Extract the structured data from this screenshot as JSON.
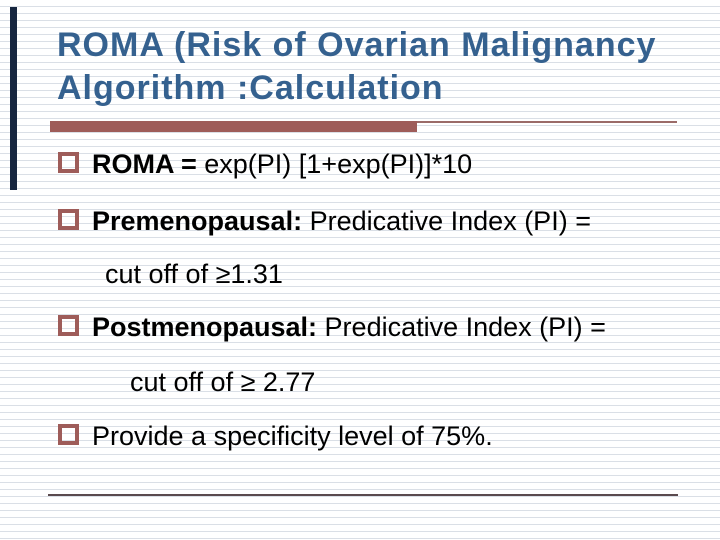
{
  "title": {
    "line1": "ROMA (Risk of Ovarian Malignancy",
    "line2": "Algorithm :Calculation"
  },
  "bullets": [
    {
      "bold": "ROMA = ",
      "rest": "exp(PI) [1+exp(PI)]*10"
    },
    {
      "bold": "Premenopausal: ",
      "rest": "Predicative Index (PI) ="
    },
    {
      "bold": "",
      "rest": "cut off of ≥1.31"
    },
    {
      "bold": "Postmenopausal: ",
      "rest": "Predicative Index (PI) ="
    },
    {
      "bold": "",
      "rest": "cut off of ≥ 2.77"
    },
    {
      "bold": "",
      "rest": "Provide a specificity level of 75%."
    }
  ],
  "colors": {
    "title_blue": "#35618F",
    "accent_maroon": "#9E5C59",
    "navy_bar": "#17263F",
    "stripe": "#DADFE6",
    "body_text": "#000000",
    "bottom_rule": "#5A4A4E",
    "thin_rule": "#9B6B68"
  }
}
